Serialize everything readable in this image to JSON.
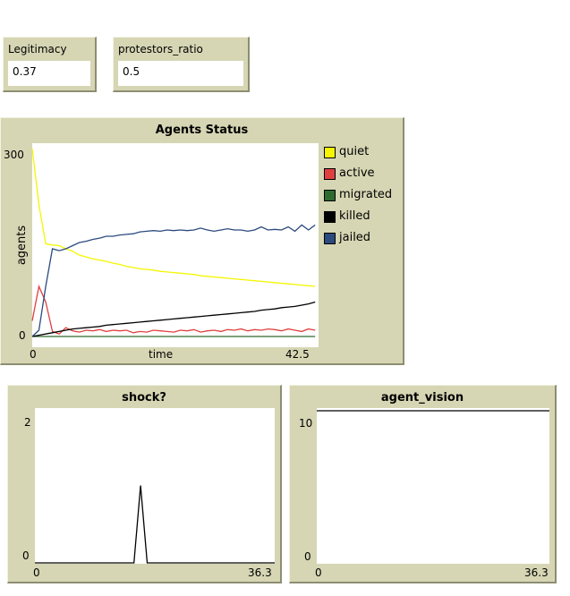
{
  "monitors": {
    "legitimacy": {
      "label": "Legitimacy",
      "value": "0.37"
    },
    "protestors_ratio": {
      "label": "protestors_ratio",
      "value": "0.5"
    }
  },
  "colors": {
    "panel": "#d6d6b4",
    "quiet": "#f5f500",
    "active": "#e04040",
    "migrated": "#2f6b2f",
    "killed": "#000000",
    "jailed": "#2c4a7e"
  },
  "plots": {
    "agents_status": {
      "title": "Agents Status",
      "xlabel": "time",
      "ylabel": "agents",
      "x_min_label": "0",
      "x_max_label": "42.5",
      "y_min_label": "0",
      "y_max_label": "300"
    },
    "shock": {
      "title": "shock?",
      "x_min_label": "0",
      "x_max_label": "36.3",
      "y_min_label": "0",
      "y_max_label": "2"
    },
    "agent_vision": {
      "title": "agent_vision",
      "x_min_label": "0",
      "x_max_label": "36.3",
      "y_min_label": "0",
      "y_max_label": "10"
    }
  },
  "chart_data": [
    {
      "type": "line",
      "title": "Agents Status",
      "xlabel": "time",
      "ylabel": "agents",
      "xlim": [
        0,
        42.5
      ],
      "ylim": [
        0,
        300
      ],
      "x": [
        0,
        1,
        2,
        3,
        4,
        5,
        6,
        7,
        8,
        9,
        10,
        11,
        12,
        13,
        14,
        15,
        16,
        17,
        18,
        19,
        20,
        21,
        22,
        23,
        24,
        25,
        26,
        27,
        28,
        29,
        30,
        31,
        32,
        33,
        34,
        35,
        36,
        37,
        38,
        39,
        40,
        41,
        42
      ],
      "legend_position": "right",
      "series": [
        {
          "name": "quiet",
          "color": "#f5f500",
          "values": [
            300,
            210,
            148,
            146,
            145,
            140,
            136,
            130,
            127,
            124,
            122,
            120,
            117,
            115,
            112,
            110,
            108,
            107,
            106,
            104,
            103,
            102,
            101,
            100,
            99,
            97,
            96,
            95,
            94,
            93,
            92,
            91,
            90,
            89,
            88,
            87,
            86,
            85,
            84,
            83,
            82,
            81,
            80
          ]
        },
        {
          "name": "active",
          "color": "#e04040",
          "values": [
            25,
            80,
            55,
            8,
            4,
            14,
            9,
            7,
            10,
            9,
            11,
            8,
            10,
            9,
            10,
            6,
            8,
            7,
            10,
            9,
            8,
            7,
            10,
            9,
            11,
            7,
            9,
            10,
            8,
            11,
            10,
            12,
            9,
            11,
            10,
            12,
            11,
            9,
            12,
            10,
            8,
            12,
            10
          ]
        },
        {
          "name": "migrated",
          "color": "#2f6b2f",
          "values": [
            0,
            0,
            0,
            0,
            0,
            0,
            0,
            0,
            0,
            0,
            0,
            0,
            0,
            0,
            0,
            0,
            0,
            0,
            0,
            0,
            0,
            0,
            0,
            0,
            0,
            0,
            0,
            0,
            0,
            0,
            0,
            0,
            0,
            0,
            0,
            0,
            0,
            0,
            0,
            0,
            0,
            0,
            0
          ]
        },
        {
          "name": "killed",
          "color": "#000000",
          "values": [
            0,
            2,
            4,
            6,
            8,
            10,
            12,
            13,
            14,
            15,
            16,
            18,
            19,
            20,
            21,
            22,
            23,
            24,
            25,
            26,
            27,
            28,
            29,
            30,
            31,
            32,
            33,
            34,
            35,
            36,
            37,
            38,
            39,
            40,
            42,
            43,
            44,
            46,
            47,
            48,
            50,
            52,
            55
          ]
        },
        {
          "name": "jailed",
          "color": "#2c4a7e",
          "values": [
            0,
            10,
            80,
            140,
            137,
            140,
            145,
            150,
            152,
            155,
            157,
            160,
            160,
            162,
            163,
            164,
            167,
            168,
            169,
            168,
            170,
            169,
            170,
            169,
            170,
            173,
            170,
            168,
            170,
            172,
            170,
            170,
            168,
            170,
            175,
            170,
            171,
            170,
            175,
            168,
            178,
            170,
            178
          ]
        }
      ]
    },
    {
      "type": "line",
      "title": "shock?",
      "xlim": [
        0,
        36.3
      ],
      "ylim": [
        0,
        2
      ],
      "x": [
        0,
        15,
        16,
        17,
        36.3
      ],
      "series": [
        {
          "color": "#000000",
          "values": [
            0,
            0,
            1,
            0,
            0
          ]
        }
      ]
    },
    {
      "type": "line",
      "title": "agent_vision",
      "xlim": [
        0,
        36.3
      ],
      "ylim": [
        0,
        10
      ],
      "x": [
        0,
        36.3
      ],
      "series": [
        {
          "color": "#000000",
          "values": [
            10,
            10
          ]
        }
      ]
    }
  ]
}
